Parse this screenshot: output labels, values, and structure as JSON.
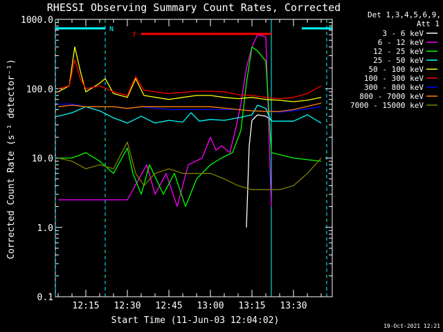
{
  "chart_data": {
    "type": "line",
    "title": "RHESSI Observing Summary Count Rates, Corrected",
    "xlabel": "Start Time (11-Jun-03 12:04:02)",
    "ylabel": "Corrected Count Rate (s⁻¹ detector⁻¹)",
    "y_scale": "log",
    "xlim": [
      "12:04",
      "13:44"
    ],
    "ylim": [
      0.1,
      1000
    ],
    "x_ticks": [
      "12:15",
      "12:30",
      "12:45",
      "13:00",
      "13:15",
      "13:30"
    ],
    "y_ticks": [
      "0.1",
      "1.0",
      "10.0",
      "100.0",
      "1000.0"
    ],
    "legend_header": [
      "Det 1,3,4,5,6,9,",
      "Att 1"
    ],
    "legend_position": "right",
    "footer_date": "19-Oct-2021 12:21",
    "markers": [
      {
        "label": "N",
        "color": "#00ffff",
        "start": "12:04",
        "end": "12:22"
      },
      {
        "label": "F",
        "color": "#ff0000",
        "start": "12:35",
        "end": "13:22"
      }
    ],
    "vlines": [
      {
        "t": "12:04",
        "color": "#00ffff",
        "style": "dashed"
      },
      {
        "t": "12:22",
        "color": "#00ffff",
        "style": "dashed"
      },
      {
        "t": "13:22",
        "color": "#00ffff",
        "style": "solid"
      },
      {
        "t": "13:42",
        "color": "#00ffff",
        "style": "dashed"
      }
    ],
    "series": [
      {
        "name": "3 - 6 keV",
        "color": "#ffffff",
        "points": [
          [
            "13:13",
            1.0
          ],
          [
            "13:14",
            15
          ],
          [
            "13:15",
            35
          ],
          [
            "13:17",
            42
          ],
          [
            "13:20",
            40
          ],
          [
            "13:22",
            35
          ]
        ]
      },
      {
        "name": "6 - 12 keV",
        "color": "#ff00ff",
        "points": [
          [
            "12:05",
            2.5
          ],
          [
            "12:10",
            2.5
          ],
          [
            "12:25",
            2.5
          ],
          [
            "12:30",
            2.5
          ],
          [
            "12:37",
            8
          ],
          [
            "12:40",
            3
          ],
          [
            "12:44",
            6
          ],
          [
            "12:48",
            2
          ],
          [
            "12:52",
            8
          ],
          [
            "12:57",
            10
          ],
          [
            "13:00",
            20
          ],
          [
            "13:02",
            13
          ],
          [
            "13:04",
            15
          ],
          [
            "13:07",
            12
          ],
          [
            "13:09",
            25
          ],
          [
            "13:11",
            60
          ],
          [
            "13:13",
            200
          ],
          [
            "13:15",
            400
          ],
          [
            "13:17",
            600
          ],
          [
            "13:20",
            560
          ],
          [
            "13:22",
            2
          ]
        ]
      },
      {
        "name": "12 - 25 keV",
        "color": "#00ff00",
        "points": [
          [
            "12:05",
            10
          ],
          [
            "12:10",
            10
          ],
          [
            "12:15",
            12
          ],
          [
            "12:20",
            9
          ],
          [
            "12:25",
            6
          ],
          [
            "12:30",
            14
          ],
          [
            "12:32",
            6
          ],
          [
            "12:35",
            3
          ],
          [
            "12:38",
            8
          ],
          [
            "12:43",
            3
          ],
          [
            "12:47",
            6
          ],
          [
            "12:51",
            2
          ],
          [
            "12:55",
            5
          ],
          [
            "13:00",
            8
          ],
          [
            "13:04",
            10
          ],
          [
            "13:08",
            12
          ],
          [
            "13:11",
            25
          ],
          [
            "13:13",
            120
          ],
          [
            "13:15",
            400
          ],
          [
            "13:17",
            350
          ],
          [
            "13:20",
            250
          ],
          [
            "13:22",
            12
          ],
          [
            "13:30",
            10
          ],
          [
            "13:40",
            9
          ]
        ]
      },
      {
        "name": "25 - 50 keV",
        "color": "#00ffff",
        "points": [
          [
            "12:05",
            40
          ],
          [
            "12:10",
            45
          ],
          [
            "12:15",
            55
          ],
          [
            "12:20",
            48
          ],
          [
            "12:25",
            38
          ],
          [
            "12:30",
            32
          ],
          [
            "12:35",
            40
          ],
          [
            "12:40",
            32
          ],
          [
            "12:45",
            35
          ],
          [
            "12:50",
            33
          ],
          [
            "12:53",
            45
          ],
          [
            "12:56",
            34
          ],
          [
            "13:00",
            36
          ],
          [
            "13:05",
            35
          ],
          [
            "13:10",
            38
          ],
          [
            "13:15",
            42
          ],
          [
            "13:17",
            58
          ],
          [
            "13:20",
            52
          ],
          [
            "13:22",
            34
          ],
          [
            "13:30",
            34
          ],
          [
            "13:35",
            42
          ],
          [
            "13:40",
            32
          ]
        ]
      },
      {
        "name": "50 - 100 keV",
        "color": "#ffff00",
        "points": [
          [
            "12:05",
            90
          ],
          [
            "12:09",
            110
          ],
          [
            "12:11",
            400
          ],
          [
            "12:13",
            180
          ],
          [
            "12:15",
            90
          ],
          [
            "12:20",
            120
          ],
          [
            "12:22",
            140
          ],
          [
            "12:25",
            85
          ],
          [
            "12:30",
            75
          ],
          [
            "12:33",
            140
          ],
          [
            "12:36",
            80
          ],
          [
            "12:45",
            70
          ],
          [
            "12:50",
            75
          ],
          [
            "12:55",
            80
          ],
          [
            "13:00",
            80
          ],
          [
            "13:05",
            75
          ],
          [
            "13:10",
            72
          ],
          [
            "13:15",
            75
          ],
          [
            "13:20",
            70
          ],
          [
            "13:25",
            68
          ],
          [
            "13:30",
            65
          ],
          [
            "13:35",
            68
          ],
          [
            "13:40",
            75
          ]
        ]
      },
      {
        "name": "100 - 300 keV",
        "color": "#ff0000",
        "points": [
          [
            "12:05",
            100
          ],
          [
            "12:09",
            110
          ],
          [
            "12:11",
            260
          ],
          [
            "12:13",
            140
          ],
          [
            "12:15",
            100
          ],
          [
            "12:20",
            110
          ],
          [
            "12:25",
            90
          ],
          [
            "12:30",
            80
          ],
          [
            "12:33",
            150
          ],
          [
            "12:36",
            95
          ],
          [
            "12:45",
            85
          ],
          [
            "12:55",
            92
          ],
          [
            "13:00",
            92
          ],
          [
            "13:05",
            90
          ],
          [
            "13:10",
            82
          ],
          [
            "13:15",
            80
          ],
          [
            "13:20",
            75
          ],
          [
            "13:25",
            72
          ],
          [
            "13:30",
            75
          ],
          [
            "13:35",
            85
          ],
          [
            "13:40",
            110
          ]
        ]
      },
      {
        "name": "300 - 800 keV",
        "color": "#0000ff",
        "points": [
          [
            "12:05",
            60
          ],
          [
            "12:10",
            60
          ],
          [
            "12:15",
            55
          ],
          [
            "12:20",
            55
          ],
          [
            "12:25",
            55
          ],
          [
            "12:30",
            52
          ],
          [
            "12:35",
            55
          ],
          [
            "12:45",
            50
          ],
          [
            "12:55",
            50
          ],
          [
            "13:00",
            50
          ],
          [
            "13:10",
            50
          ],
          [
            "13:15",
            48
          ],
          [
            "13:20",
            47
          ],
          [
            "13:25",
            46
          ],
          [
            "13:30",
            48
          ],
          [
            "13:40",
            55
          ]
        ]
      },
      {
        "name": "800 - 7000 keV",
        "color": "#ff8000",
        "points": [
          [
            "12:05",
            55
          ],
          [
            "12:10",
            58
          ],
          [
            "12:15",
            55
          ],
          [
            "12:20",
            55
          ],
          [
            "12:25",
            55
          ],
          [
            "12:30",
            52
          ],
          [
            "12:35",
            55
          ],
          [
            "12:45",
            55
          ],
          [
            "12:55",
            55
          ],
          [
            "13:00",
            55
          ],
          [
            "13:10",
            50
          ],
          [
            "13:15",
            48
          ],
          [
            "13:20",
            47
          ],
          [
            "13:25",
            47
          ],
          [
            "13:30",
            50
          ],
          [
            "13:40",
            62
          ]
        ]
      },
      {
        "name": "7000 - 15000 keV",
        "color": "#808000",
        "points": [
          [
            "12:05",
            10
          ],
          [
            "12:10",
            9
          ],
          [
            "12:15",
            7
          ],
          [
            "12:20",
            8
          ],
          [
            "12:25",
            7
          ],
          [
            "12:28",
            12
          ],
          [
            "12:30",
            17
          ],
          [
            "12:33",
            6
          ],
          [
            "12:36",
            4
          ],
          [
            "12:40",
            6
          ],
          [
            "12:45",
            7
          ],
          [
            "12:50",
            6
          ],
          [
            "12:55",
            6
          ],
          [
            "13:00",
            6
          ],
          [
            "13:05",
            5
          ],
          [
            "13:10",
            4
          ],
          [
            "13:15",
            3.5
          ],
          [
            "13:20",
            3.5
          ],
          [
            "13:25",
            3.5
          ],
          [
            "13:30",
            4
          ],
          [
            "13:35",
            6
          ],
          [
            "13:40",
            10
          ]
        ]
      }
    ]
  }
}
